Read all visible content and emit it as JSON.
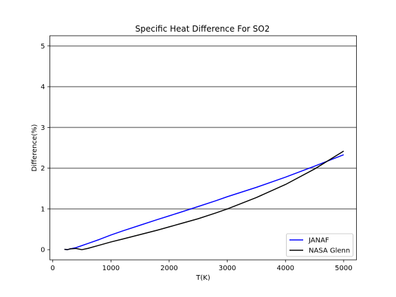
{
  "chart_data": {
    "type": "line",
    "title": "Specific Heat Difference For SO2",
    "xlabel": "T(K)",
    "ylabel": "Difference(%)",
    "xlim": [
      -50,
      5220
    ],
    "ylim": [
      -0.25,
      5.25
    ],
    "xticks": [
      0,
      1000,
      2000,
      3000,
      4000,
      5000
    ],
    "yticks": [
      0,
      1,
      2,
      3,
      4,
      5
    ],
    "y_grid_lines": [
      1,
      2,
      3,
      4,
      5
    ],
    "legend_position": "lower-right",
    "series": [
      {
        "name": "JANAF",
        "color": "#0000ff",
        "points": [
          [
            200,
            0.01
          ],
          [
            250,
            0.0
          ],
          [
            300,
            0.02
          ],
          [
            400,
            0.05
          ],
          [
            500,
            0.1
          ],
          [
            600,
            0.15
          ],
          [
            800,
            0.25
          ],
          [
            1000,
            0.36
          ],
          [
            1200,
            0.46
          ],
          [
            1500,
            0.6
          ],
          [
            1800,
            0.74
          ],
          [
            2000,
            0.83
          ],
          [
            2200,
            0.92
          ],
          [
            2500,
            1.06
          ],
          [
            2800,
            1.2
          ],
          [
            3000,
            1.3
          ],
          [
            3500,
            1.53
          ],
          [
            4000,
            1.78
          ],
          [
            4500,
            2.05
          ],
          [
            5000,
            2.33
          ]
        ]
      },
      {
        "name": "NASA Glenn",
        "color": "#000000",
        "points": [
          [
            200,
            0.01
          ],
          [
            250,
            0.0
          ],
          [
            300,
            0.02
          ],
          [
            400,
            0.03
          ],
          [
            500,
            0.0
          ],
          [
            600,
            0.03
          ],
          [
            800,
            0.11
          ],
          [
            1000,
            0.19
          ],
          [
            1200,
            0.26
          ],
          [
            1500,
            0.37
          ],
          [
            1800,
            0.48
          ],
          [
            2000,
            0.56
          ],
          [
            2200,
            0.64
          ],
          [
            2500,
            0.76
          ],
          [
            2800,
            0.9
          ],
          [
            3000,
            1.0
          ],
          [
            3500,
            1.28
          ],
          [
            4000,
            1.6
          ],
          [
            4500,
            1.98
          ],
          [
            5000,
            2.42
          ]
        ]
      }
    ]
  }
}
